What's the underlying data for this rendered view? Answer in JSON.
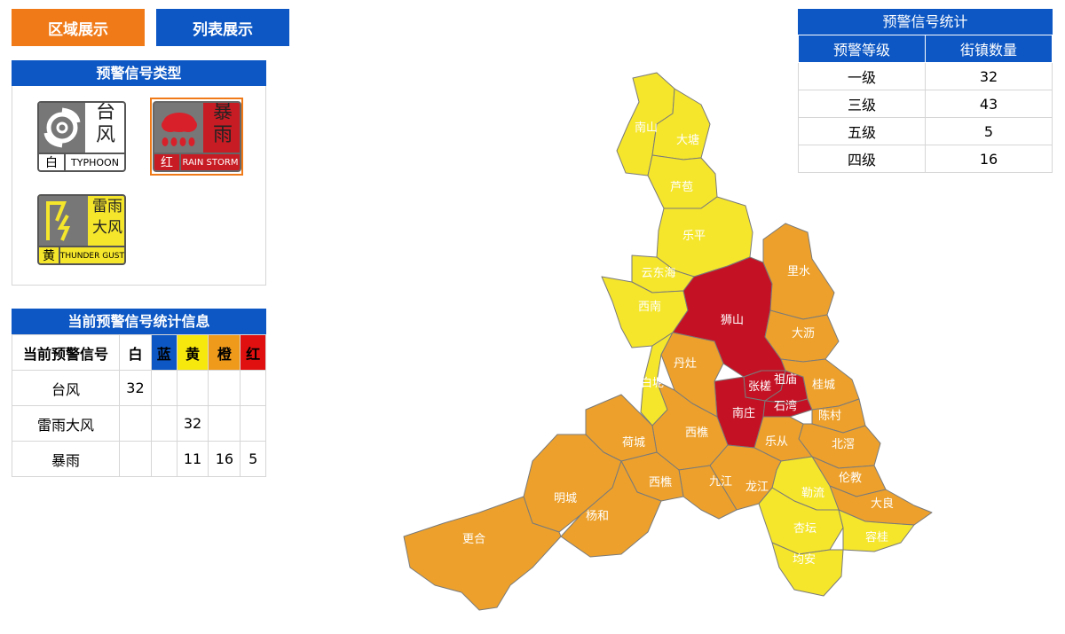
{
  "tabs": {
    "area": "区域展示",
    "list": "列表展示"
  },
  "types_panel": {
    "title": "预警信号类型",
    "icons": [
      {
        "name": "typhoon",
        "cn_top": "台",
        "cn_bottom": "风",
        "level": "白",
        "en": "TYPHOON",
        "icon": "typhoon-icon"
      },
      {
        "name": "rainstorm",
        "cn_top": "暴",
        "cn_bottom": "雨",
        "level": "红",
        "en": "RAIN STORM",
        "icon": "rainstorm-icon"
      },
      {
        "name": "thunder-gust",
        "cn_top": "雷雨",
        "cn_bottom": "大风",
        "level": "黄",
        "en": "THUNDER GUST",
        "icon": "lightning-icon"
      }
    ]
  },
  "stats_panel": {
    "title": "当前预警信号统计信息",
    "headers": [
      "当前预警信号",
      "白",
      "蓝",
      "黄",
      "橙",
      "红"
    ],
    "header_colors": [
      "#ffffff",
      "#ffffff",
      "#0c57c4",
      "#f6e70c",
      "#f09a1c",
      "#e01010"
    ],
    "rows": [
      [
        "台风",
        "32",
        "",
        "",
        "",
        ""
      ],
      [
        "雷雨大风",
        "",
        "",
        "32",
        "",
        ""
      ],
      [
        "暴雨",
        "",
        "",
        "11",
        "16",
        "5"
      ]
    ]
  },
  "signal_panel": {
    "title": "预警信号统计",
    "headers": [
      "预警等级",
      "街镇数量"
    ],
    "rows": [
      [
        "一级",
        "32"
      ],
      [
        "三级",
        "43"
      ],
      [
        "五级",
        "5"
      ],
      [
        "四级",
        "16"
      ]
    ]
  },
  "map": {
    "colors": {
      "yellow": "#f5e62c",
      "orange": "#eda12c",
      "red": "#c41224",
      "border": "#7a7a7a"
    },
    "labels": [
      "南山",
      "大塘",
      "芦苞",
      "乐平",
      "云东海",
      "西南",
      "白坭",
      "狮山",
      "里水",
      "大沥",
      "丹灶",
      "张槎",
      "祖庙",
      "桂城",
      "南庄",
      "石湾",
      "陈村",
      "荷城",
      "西樵",
      "乐从",
      "北滘",
      "西樵",
      "九江",
      "龙江",
      "勒流",
      "伦教",
      "大良",
      "明城",
      "杨和",
      "杏坛",
      "容桂",
      "更合",
      "均安"
    ]
  }
}
